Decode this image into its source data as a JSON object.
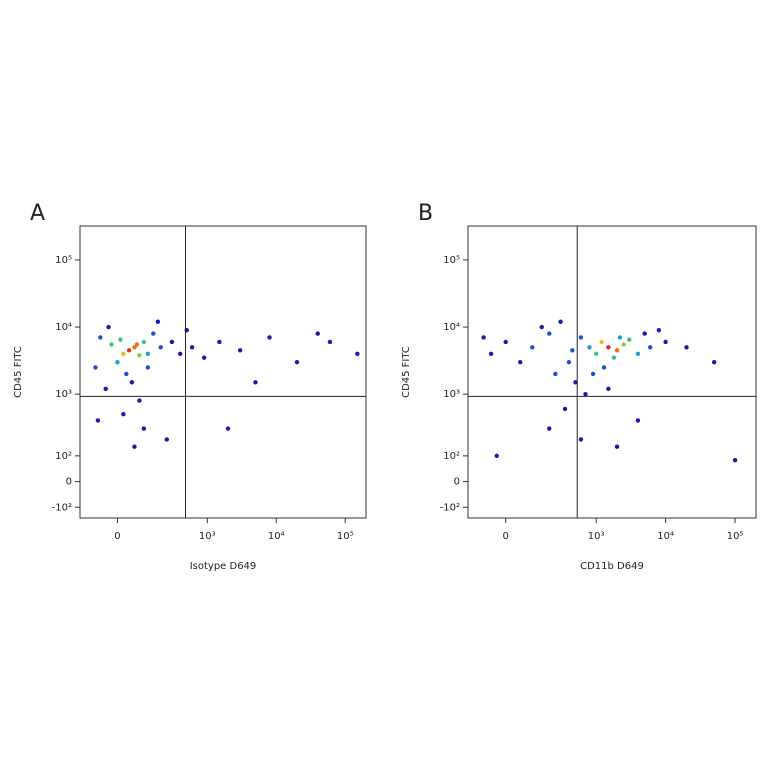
{
  "chart_data": [
    {
      "type": "scatter",
      "label": "A",
      "xlabel": "Isotype D649",
      "ylabel": "CD45 FITC",
      "xscale": "biexponential",
      "yscale": "biexponential",
      "xlim": [
        -160,
        200000
      ],
      "ylim": [
        -160,
        320000
      ],
      "xticks": [
        0,
        {
          "value": 1000,
          "label": "10³"
        },
        {
          "value": 10000,
          "label": "10⁴"
        },
        {
          "value": 100000,
          "label": "10⁵"
        }
      ],
      "yticks": [
        {
          "value": -100,
          "label": "-10²"
        },
        0,
        {
          "value": 100,
          "label": "10²"
        },
        {
          "value": 1000,
          "label": "10³"
        },
        {
          "value": 10000,
          "label": "10⁴"
        },
        {
          "value": 100000,
          "label": "10⁵"
        }
      ],
      "gates": {
        "x": 480,
        "y": 925
      },
      "x": [
        40,
        60,
        20,
        80,
        -20,
        100,
        0,
        120,
        -60,
        150,
        200,
        300,
        -80,
        30,
        50,
        -40,
        80,
        20,
        100,
        60,
        -30,
        180,
        400,
        600,
        900,
        1500,
        3000,
        8000,
        20000,
        60000,
        150000,
        40000,
        2000,
        5000,
        250,
        -70,
        120,
        10,
        70,
        500
      ],
      "y": [
        4500,
        5000,
        4000,
        3800,
        5500,
        6000,
        3000,
        4000,
        7000,
        8000,
        5000,
        6000,
        2500,
        2000,
        1500,
        1200,
        800,
        500,
        300,
        150,
        10000,
        12000,
        4000,
        5000,
        3500,
        6000,
        4500,
        7000,
        3000,
        6000,
        4000,
        8000,
        300,
        1500,
        200,
        400,
        2500,
        6500,
        5500,
        9000
      ],
      "colors": [
        "#e03010",
        "#f07010",
        "#e0c020",
        "#80d040",
        "#40c080",
        "#40c080",
        "#20a0c0",
        "#20a0c0",
        "#2050d0",
        "#2050d0",
        "#2050d0",
        "#1a1aa8",
        "#2050d0",
        "#2050d0",
        "#1a1aa8",
        "#1a1aa8",
        "#1a1aa8",
        "#1a1aa8",
        "#1a1aa8",
        "#1a1aa8",
        "#1a1aa8",
        "#1a1aa8",
        "#1a1aa8",
        "#1a1aa8",
        "#1a1aa8",
        "#1a1aa8",
        "#1a1aa8",
        "#1a1aa8",
        "#1a1aa8",
        "#1a1aa8",
        "#1a1aa8",
        "#1a1aa8",
        "#1a1aa8",
        "#1a1aa8",
        "#1a1aa8",
        "#1a1aa8",
        "#2050d0",
        "#40c080",
        "#f07010",
        "#1a1aa8"
      ]
    },
    {
      "type": "scatter",
      "label": "B",
      "xlabel": "CD11b D649",
      "ylabel": "CD45 FITC",
      "xscale": "biexponential",
      "yscale": "biexponential",
      "xlim": [
        -160,
        200000
      ],
      "ylim": [
        -160,
        320000
      ],
      "xticks": [
        0,
        {
          "value": 1000,
          "label": "10³"
        },
        {
          "value": 10000,
          "label": "10⁴"
        },
        {
          "value": 100000,
          "label": "10⁵"
        }
      ],
      "yticks": [
        {
          "value": -100,
          "label": "-10²"
        },
        0,
        {
          "value": 100,
          "label": "10²"
        },
        {
          "value": 1000,
          "label": "10³"
        },
        {
          "value": 10000,
          "label": "10⁴"
        },
        {
          "value": 100000,
          "label": "10⁵"
        }
      ],
      "gates": {
        "x": 530,
        "y": 925
      },
      "x": [
        1500,
        2000,
        1200,
        2500,
        1000,
        3000,
        800,
        4000,
        600,
        6000,
        400,
        200,
        100,
        0,
        -50,
        300,
        150,
        50,
        250,
        500,
        700,
        900,
        1500,
        350,
        200,
        600,
        -30,
        2000,
        4000,
        10000,
        20000,
        8000,
        50000,
        100000,
        1800,
        2200,
        5000,
        -80,
        450,
        1300
      ],
      "y": [
        5000,
        4500,
        6000,
        5500,
        4000,
        6500,
        5000,
        4000,
        7000,
        5000,
        3000,
        8000,
        5000,
        6000,
        4000,
        12000,
        10000,
        3000,
        2000,
        1500,
        1000,
        2000,
        1200,
        600,
        300,
        200,
        100,
        150,
        400,
        6000,
        5000,
        9000,
        3000,
        80,
        3500,
        7000,
        8000,
        7000,
        4500,
        2500
      ],
      "colors": [
        "#e03010",
        "#f07010",
        "#e0c020",
        "#80d040",
        "#40c080",
        "#40c080",
        "#20a0c0",
        "#20a0c0",
        "#2050d0",
        "#2050d0",
        "#2050d0",
        "#2050d0",
        "#2050d0",
        "#1a1aa8",
        "#1a1aa8",
        "#1a1aa8",
        "#1a1aa8",
        "#1a1aa8",
        "#2050d0",
        "#1a1aa8",
        "#1a1aa8",
        "#2050d0",
        "#1a1aa8",
        "#1a1aa8",
        "#1a1aa8",
        "#1a1aa8",
        "#1a1aa8",
        "#1a1aa8",
        "#1a1aa8",
        "#1a1aa8",
        "#1a1aa8",
        "#1a1aa8",
        "#1a1aa8",
        "#1a1aa8",
        "#40c080",
        "#20a0c0",
        "#1a1aa8",
        "#1a1aa8",
        "#2050d0",
        "#2050d0"
      ]
    }
  ]
}
